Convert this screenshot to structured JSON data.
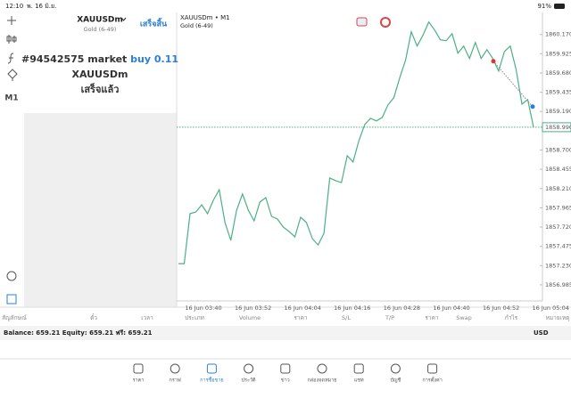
{
  "status_bar": {
    "time": "12:10",
    "date": "พ. 16 มิ.ย.",
    "battery": "91%"
  },
  "sidebar": {
    "timeframe": "M1"
  },
  "order_panel": {
    "symbol": "XAUUSDm",
    "description": "Gold (6-49)",
    "done_button": "เสร็จสิ้น",
    "order": "#94542575 market",
    "order_action": "buy 0.11",
    "order_symbol": "XAUUSDm",
    "status": "เสร็จแล้ว"
  },
  "chart_data": {
    "type": "line",
    "title": "XAUUSDm • M1",
    "subtitle": "Gold (6-49)",
    "xtick_labels": [
      "16 Jun 03:40",
      "16 Jun 03:52",
      "16 Jun 04:04",
      "16 Jun 04:16",
      "16 Jun 04:28",
      "16 Jun 04:40",
      "16 Jun 04:52",
      "16 Jun 05:04"
    ],
    "values": [
      1857.255,
      1857.255,
      1857.89,
      1857.913,
      1858.003,
      1857.89,
      1858.06,
      1858.196,
      1857.777,
      1857.55,
      1857.935,
      1858.14,
      1857.935,
      1857.799,
      1858.038,
      1858.094,
      1857.856,
      1857.822,
      1857.72,
      1857.663,
      1857.595,
      1857.845,
      1857.777,
      1857.572,
      1857.493,
      1857.641,
      1858.344,
      1858.31,
      1858.287,
      1858.627,
      1858.548,
      1858.82,
      1859.024,
      1859.104,
      1859.07,
      1859.115,
      1859.274,
      1859.365,
      1859.614,
      1859.841,
      1860.204,
      1860.023,
      1860.159,
      1860.329,
      1860.227,
      1860.102,
      1860.091,
      1860.181,
      1859.932,
      1860.023,
      1859.864,
      1860.068,
      1859.864,
      1859.977,
      1859.864,
      1859.705,
      1859.954,
      1860.023,
      1859.728,
      1859.285,
      1859.342,
      1858.99
    ],
    "color": "#4caf87",
    "ylim": [
      1856.78,
      1860.45
    ],
    "yticks": [
      {
        "value": 1860.17,
        "label": "1860.170"
      },
      1859.925,
      {
        "value": 1859.68,
        "label": "1859.680"
      },
      1859.435,
      {
        "value": 1859.19,
        "label": "1859.190"
      },
      {
        "value": 1858.7,
        "label": "1858.700"
      },
      1858.455,
      {
        "value": 1858.21,
        "label": "1858.210"
      },
      1857.965,
      {
        "value": 1857.72,
        "label": "1857.720"
      },
      1857.475,
      {
        "value": 1857.23,
        "label": "1857.230"
      },
      1856.985
    ],
    "current_price": {
      "value": 1858.99,
      "label": "1858.990"
    },
    "trade_line": [
      1859.83,
      1859.252
    ]
  },
  "positions_table": {
    "columns": [
      "สัญลักษณ์",
      "ตั๋ว",
      "เวลา",
      "ประเภท",
      "Volume",
      "ราคา",
      "S/L",
      "T/P",
      "ราคา",
      "Swap",
      "กำไร",
      "หมายเหตุ"
    ],
    "summary": "Balance: 659.21 Equity: 659.21 ฟรี: 659.21",
    "currency": "USD"
  },
  "tab_bar": {
    "tabs": [
      "ราคา",
      "กราฟ",
      "การซื้อขาย",
      "ประวัติ",
      "ข่าว",
      "กล่องจดหมาย",
      "แชท",
      "บัญชี",
      "การตั้งค่า"
    ],
    "active": 2
  }
}
